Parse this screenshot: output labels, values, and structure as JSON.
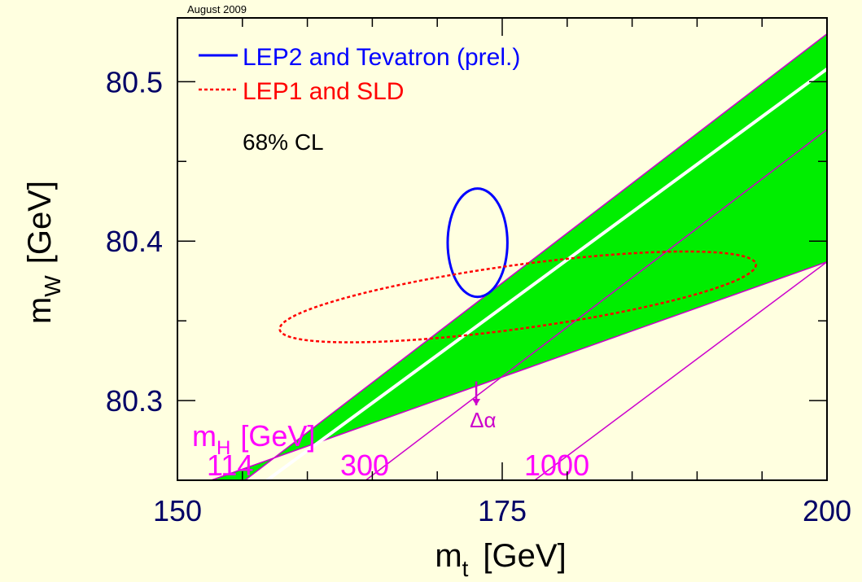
{
  "chart_data": {
    "type": "scatter",
    "date_label": "August 2009",
    "xlabel_main": "m",
    "xlabel_sub": "t",
    "xlabel_unit": "[GeV]",
    "ylabel_main": "m",
    "ylabel_sub": "W",
    "ylabel_unit": "[GeV]",
    "xlim": [
      150,
      200
    ],
    "ylim": [
      80.25,
      80.54
    ],
    "x_ticks": [
      150,
      175,
      200
    ],
    "y_ticks": [
      80.3,
      80.4,
      80.5
    ],
    "x_tick_labels": [
      "150",
      "175",
      "200"
    ],
    "y_tick_labels": [
      "80.3",
      "80.4",
      "80.5"
    ],
    "legend": {
      "placement": "top-left",
      "entries": [
        {
          "label": "LEP2 and Tevatron (prel.)",
          "color": "#0000ff",
          "style": "solid"
        },
        {
          "label": "LEP1 and SLD",
          "color": "#ff0000",
          "style": "dotted"
        }
      ],
      "cl_text": "68% CL"
    },
    "band": {
      "color": "#00ee00",
      "edge_color": "#cc00cc",
      "lower_edge": [
        [
          152.6,
          80.25
        ],
        [
          200,
          80.387
        ]
      ],
      "upper_edge": [
        [
          155.2,
          80.25
        ],
        [
          200,
          80.53
        ]
      ],
      "higgs_lines": [
        {
          "mass": "114",
          "label": "114",
          "points": [
            [
              156.9,
              80.25
            ],
            [
              200,
              80.508
            ]
          ],
          "color": "#ffffff"
        },
        {
          "mass": "300",
          "label": "300",
          "points": [
            [
              164.5,
              80.25
            ],
            [
              200,
              80.47
            ]
          ],
          "color": "#cc00cc"
        },
        {
          "mass": "1000",
          "label": "1000",
          "points": [
            [
              177.5,
              80.25
            ],
            [
              200,
              80.387
            ]
          ],
          "color": "#cc00cc"
        }
      ],
      "mh_title_main": "m",
      "mh_title_sub": "H",
      "mh_title_unit": "[GeV]",
      "mh_color": "#ff00ff"
    },
    "ellipses": [
      {
        "name": "LEP2 and Tevatron (prel.)",
        "cx": 173.1,
        "cy": 80.399,
        "rx": 2.3,
        "ry": 0.034,
        "angle_deg": 0,
        "color": "#0000ff",
        "style": "solid"
      },
      {
        "name": "LEP1 and SLD",
        "cx": 176.2,
        "cy": 80.365,
        "rx": 18.5,
        "ry": 0.02,
        "angle_deg": 7.8,
        "color": "#ff0000",
        "style": "dotted"
      }
    ],
    "annotation": {
      "text": "Δα",
      "arrow_x": 173,
      "arrow_from_y": 80.312,
      "arrow_to_y": 80.297,
      "color": "#cc00cc"
    },
    "axis_color": "#000066",
    "background_color": "#ffffe0"
  }
}
